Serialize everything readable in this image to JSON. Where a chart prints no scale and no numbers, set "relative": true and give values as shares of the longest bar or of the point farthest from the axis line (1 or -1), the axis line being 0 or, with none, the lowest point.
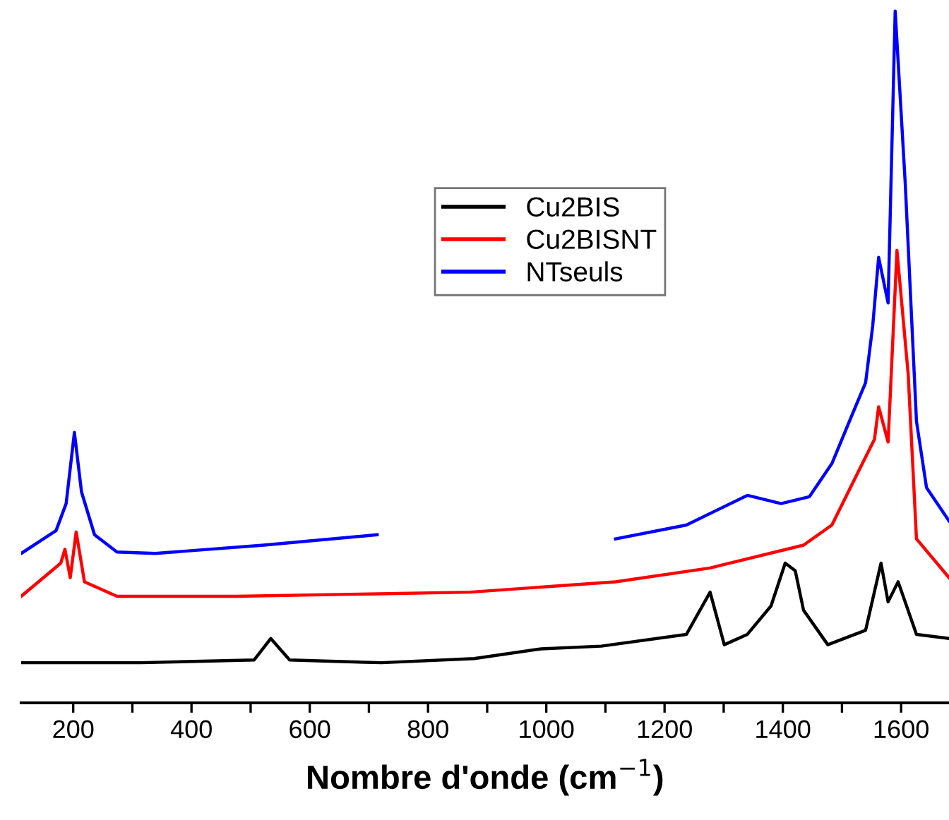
{
  "chart_data": {
    "type": "line",
    "relative": true,
    "xlabel": "Nombre d'onde (cm$^{−1}$)",
    "xlim": [
      112,
      1681
    ],
    "xticks": [
      200,
      {
        "value": 300,
        "label": null
      },
      400,
      {
        "value": 500,
        "label": null
      },
      600,
      {
        "value": 700,
        "label": null
      },
      800,
      {
        "value": 900,
        "label": null
      },
      1000,
      {
        "value": 1100,
        "label": null
      },
      1200,
      {
        "value": 1300,
        "label": null
      },
      1400,
      {
        "value": 1500,
        "label": null
      },
      1600
    ],
    "tick_labels": "x",
    "legend": "center",
    "grid": false,
    "marker": "none",
    "line_style": "solid",
    "series": [
      {
        "name": "Cu2BIS",
        "color": "#000000",
        "x": [
          112,
          315,
          506,
          534,
          566,
          721,
          878,
          991,
          1093,
          1237,
          1277,
          1301,
          1340,
          1380,
          1404,
          1421,
          1435,
          1476,
          1540,
          1566,
          1578,
          1595,
          1626,
          1681
        ],
        "values": [
          0.058,
          0.058,
          0.062,
          0.093,
          0.062,
          0.058,
          0.064,
          0.078,
          0.082,
          0.099,
          0.16,
          0.084,
          0.099,
          0.14,
          0.202,
          0.191,
          0.134,
          0.084,
          0.105,
          0.202,
          0.146,
          0.175,
          0.099,
          0.093
        ]
      },
      {
        "name": "Cu2BISNT",
        "color": "#ff0000",
        "x": [
          112,
          179,
          186,
          195,
          205,
          219,
          274,
          475,
          871,
          1117,
          1277,
          1435,
          1483,
          1531,
          1555,
          1562,
          1578,
          1593,
          1612,
          1626,
          1681
        ],
        "values": [
          0.154,
          0.202,
          0.222,
          0.181,
          0.247,
          0.175,
          0.154,
          0.154,
          0.16,
          0.175,
          0.195,
          0.228,
          0.257,
          0.34,
          0.381,
          0.428,
          0.377,
          0.654,
          0.475,
          0.237,
          0.181
        ]
      },
      {
        "name": "NTseuls",
        "color": "#0000ff",
        "x": [
          112,
          171,
          188,
          202,
          214,
          236,
          274,
          339,
          522,
          714,
          900,
          1117,
          1237,
          1340,
          1397,
          1445,
          1483,
          1516,
          1540,
          1552,
          1562,
          1578,
          1590,
          1607,
          1626,
          1643,
          1681
        ],
        "values": [
          0.216,
          0.249,
          0.288,
          0.391,
          0.305,
          0.243,
          0.218,
          0.216,
          0.228,
          0.243,
          null,
          0.237,
          0.257,
          0.3,
          0.288,
          0.298,
          0.346,
          0.414,
          0.463,
          0.545,
          0.644,
          0.578,
          1,
          0.751,
          0.407,
          0.311,
          0.263
        ]
      }
    ]
  }
}
